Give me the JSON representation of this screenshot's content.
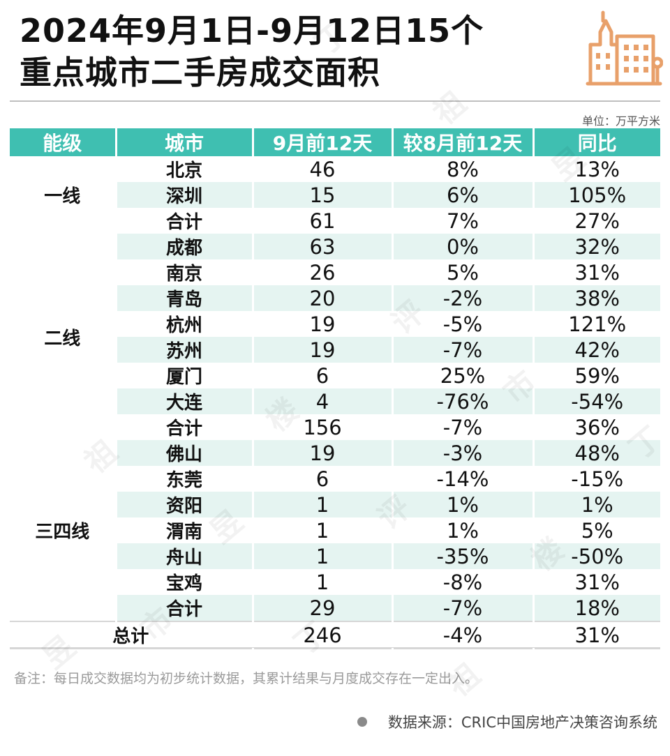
{
  "title": {
    "line1": "2024年9月1日-9月12日15个",
    "line2": "重点城市二手房成交面积"
  },
  "unit": "单位：万平方米",
  "table": {
    "headers": [
      "能级",
      "城市",
      "9月前12天",
      "较8月前12天",
      "同比"
    ],
    "groups": [
      {
        "tier": "一线",
        "rows": [
          {
            "city": "北京",
            "area": "46",
            "mom": "8%",
            "yoy": "13%"
          },
          {
            "city": "深圳",
            "area": "15",
            "mom": "6%",
            "yoy": "105%"
          },
          {
            "city": "合计",
            "area": "61",
            "mom": "7%",
            "yoy": "27%"
          }
        ]
      },
      {
        "tier": "二线",
        "rows": [
          {
            "city": "成都",
            "area": "63",
            "mom": "0%",
            "yoy": "32%"
          },
          {
            "city": "南京",
            "area": "26",
            "mom": "5%",
            "yoy": "31%"
          },
          {
            "city": "青岛",
            "area": "20",
            "mom": "-2%",
            "yoy": "38%"
          },
          {
            "city": "杭州",
            "area": "19",
            "mom": "-5%",
            "yoy": "121%"
          },
          {
            "city": "苏州",
            "area": "19",
            "mom": "-7%",
            "yoy": "42%"
          },
          {
            "city": "厦门",
            "area": "6",
            "mom": "25%",
            "yoy": "59%"
          },
          {
            "city": "大连",
            "area": "4",
            "mom": "-76%",
            "yoy": "-54%"
          },
          {
            "city": "合计",
            "area": "156",
            "mom": "-7%",
            "yoy": "36%"
          }
        ]
      },
      {
        "tier": "三四线",
        "rows": [
          {
            "city": "佛山",
            "area": "19",
            "mom": "-3%",
            "yoy": "48%"
          },
          {
            "city": "东莞",
            "area": "6",
            "mom": "-14%",
            "yoy": "-15%"
          },
          {
            "city": "资阳",
            "area": "1",
            "mom": "1%",
            "yoy": "1%"
          },
          {
            "city": "渭南",
            "area": "1",
            "mom": "1%",
            "yoy": "5%"
          },
          {
            "city": "舟山",
            "area": "1",
            "mom": "-35%",
            "yoy": "-50%"
          },
          {
            "city": "宝鸡",
            "area": "1",
            "mom": "-8%",
            "yoy": "31%"
          },
          {
            "city": "合计",
            "area": "29",
            "mom": "-7%",
            "yoy": "18%"
          }
        ]
      }
    ],
    "total": {
      "label": "总计",
      "area": "246",
      "mom": "-4%",
      "yoy": "31%"
    }
  },
  "note": "备注：每日成交数据均为初步统计数据，其累计结果与月度成交存在一定出入。",
  "source": "数据来源：CRIC中国房地产决策咨询系统",
  "colors": {
    "header_bg": "#3fbfb1",
    "stripe": "#e5f4f1",
    "logo": "#e8a06a"
  },
  "icons": {
    "logo": "buildings-icon",
    "bullet": "dot-icon"
  },
  "watermark": [
    "丁",
    "祖",
    "昱",
    "评",
    "楼",
    "市"
  ]
}
